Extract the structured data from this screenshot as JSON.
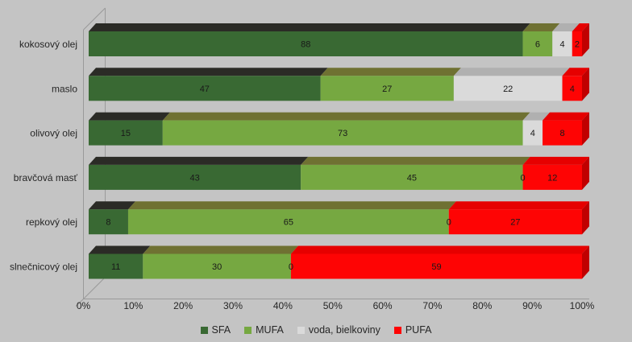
{
  "background_color": "#c4c4c4",
  "axis_color": "#9a9a9a",
  "text_color": "#262626",
  "chart_data": {
    "type": "bar",
    "orientation": "horizontal",
    "stacked": true,
    "style": "3d",
    "title": "",
    "xlabel": "",
    "ylabel": "",
    "categories": [
      "kokosový olej",
      "maslo",
      "olivový olej",
      "bravčová masť",
      "repkový olej",
      "slnečnicový olej"
    ],
    "series": [
      {
        "name": "SFA",
        "color": "#396933",
        "top_color": "#2b2b26",
        "side_color": "#24341f",
        "values": [
          88,
          47,
          15,
          43,
          8,
          11
        ]
      },
      {
        "name": "MUFA",
        "color": "#76a841",
        "top_color": "#6f7132",
        "side_color": "#55772f",
        "values": [
          6,
          27,
          73,
          45,
          65,
          30
        ]
      },
      {
        "name": "voda, bielkoviny",
        "color": "#dadada",
        "top_color": "#b0b0b0",
        "side_color": "#a8a8a8",
        "values": [
          4,
          22,
          4,
          0,
          0,
          0
        ]
      },
      {
        "name": "PUFA",
        "color": "#fe0404",
        "top_color": "#e60000",
        "side_color": "#c00000",
        "values": [
          2,
          4,
          8,
          12,
          27,
          59
        ]
      }
    ],
    "data_labels": true,
    "xlim": [
      0,
      100
    ],
    "x_ticks": [
      "0%",
      "10%",
      "20%",
      "30%",
      "40%",
      "50%",
      "60%",
      "70%",
      "80%",
      "90%",
      "100%"
    ],
    "gridlines": false,
    "legend_position": "bottom"
  }
}
